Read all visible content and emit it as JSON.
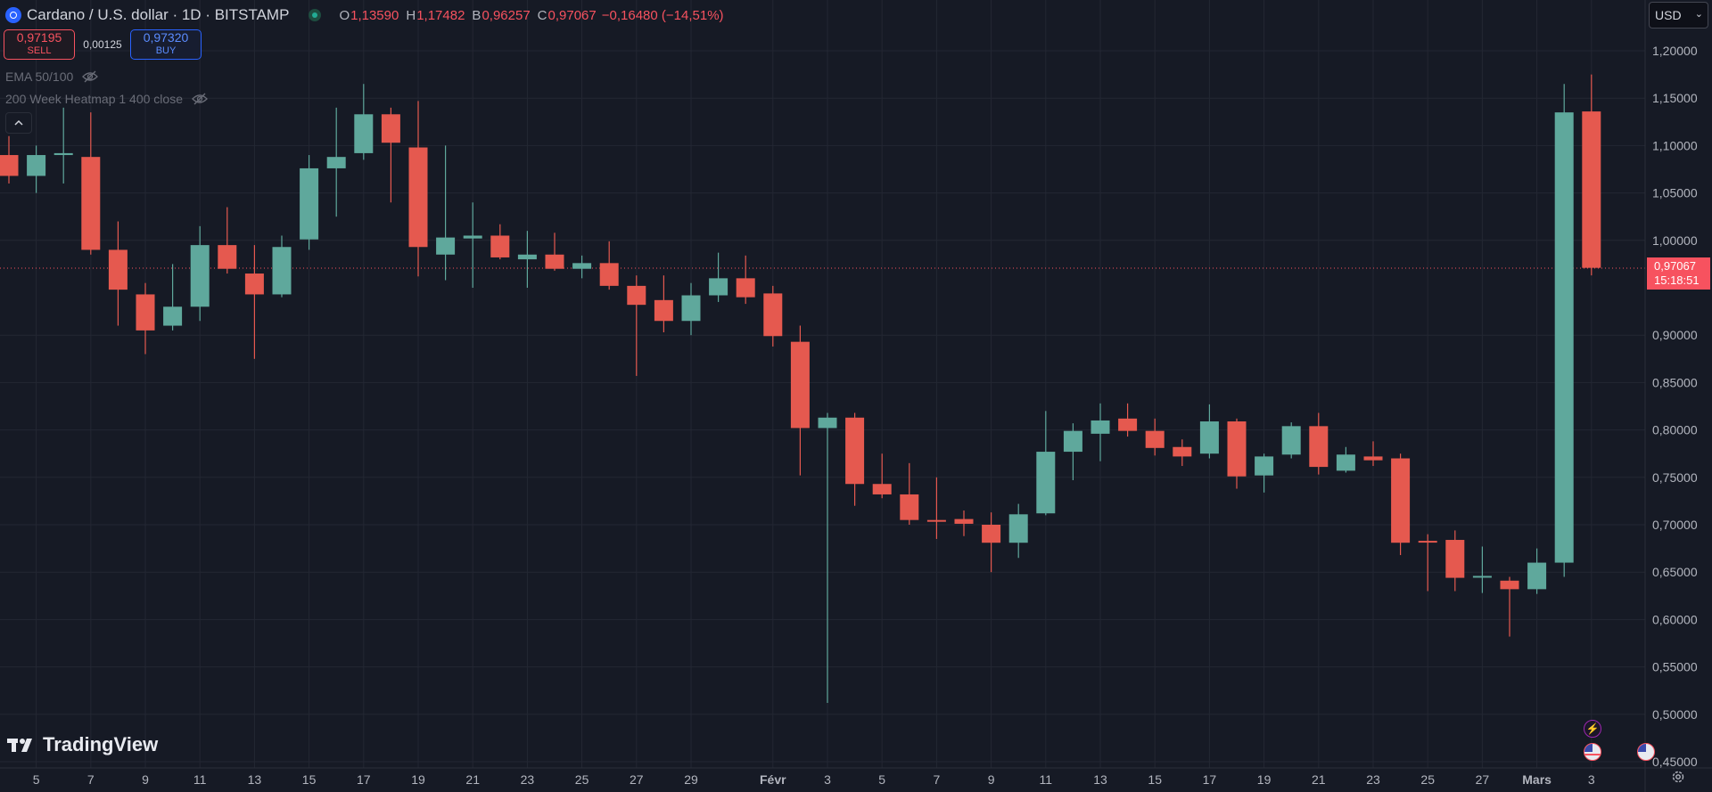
{
  "header": {
    "symbol": "Cardano / U.S. dollar · 1D · BITSTAMP",
    "o_label": "O",
    "o_value": "1,13590",
    "h_label": "H",
    "h_value": "1,17482",
    "b_label": "B",
    "b_value": "0,96257",
    "c_label": "C",
    "c_value": "0,97067",
    "change": "−0,16480 (−14,51%)"
  },
  "trade": {
    "sell_price": "0,97195",
    "sell_label": "SELL",
    "spread": "0,00125",
    "buy_price": "0,97320",
    "buy_label": "BUY"
  },
  "indicators": [
    "EMA 50/100",
    "200 Week Heatmap 1 400 close"
  ],
  "currency": "USD",
  "last_price": {
    "value": "0,97067",
    "countdown": "15:18:51"
  },
  "branding": "TradingView",
  "colors": {
    "up": "#5fa89c",
    "down": "#e5594f",
    "background": "#161a25",
    "grid": "#232733",
    "last_price": "#f7525f"
  },
  "chart_data": {
    "type": "candlestick",
    "ylim": [
      0.45,
      1.2
    ],
    "grid": true,
    "y_ticks": [
      "1,20000",
      "1,15000",
      "1,10000",
      "1,05000",
      "1,00000",
      "0,90000",
      "0,85000",
      "0,80000",
      "0,75000",
      "0,70000",
      "0,65000",
      "0,60000",
      "0,55000",
      "0,50000",
      "0,45000"
    ],
    "x_ticks": [
      "5",
      "7",
      "9",
      "11",
      "13",
      "15",
      "17",
      "19",
      "21",
      "23",
      "25",
      "27",
      "29",
      "Févr",
      "3",
      "5",
      "7",
      "9",
      "11",
      "13",
      "15",
      "17",
      "19",
      "21",
      "23",
      "25",
      "27",
      "Mars",
      "3"
    ],
    "x_dates": [
      "2025-01-05",
      "2025-01-07",
      "2025-01-09",
      "2025-01-11",
      "2025-01-13",
      "2025-01-15",
      "2025-01-17",
      "2025-01-19",
      "2025-01-21",
      "2025-01-23",
      "2025-01-25",
      "2025-01-27",
      "2025-01-29",
      "2025-02-01",
      "2025-02-03",
      "2025-02-05",
      "2025-02-07",
      "2025-02-09",
      "2025-02-11",
      "2025-02-13",
      "2025-02-15",
      "2025-02-17",
      "2025-02-19",
      "2025-02-21",
      "2025-02-23",
      "2025-02-25",
      "2025-02-27",
      "2025-03-01",
      "2025-03-03"
    ],
    "candles": [
      {
        "date": "2025-01-04",
        "o": 1.09,
        "h": 1.11,
        "l": 1.06,
        "c": 1.068
      },
      {
        "date": "2025-01-05",
        "o": 1.068,
        "h": 1.1,
        "l": 1.05,
        "c": 1.09
      },
      {
        "date": "2025-01-06",
        "o": 1.09,
        "h": 1.14,
        "l": 1.06,
        "c": 1.092
      },
      {
        "date": "2025-01-07",
        "o": 1.088,
        "h": 1.135,
        "l": 0.985,
        "c": 0.99
      },
      {
        "date": "2025-01-08",
        "o": 0.99,
        "h": 1.02,
        "l": 0.91,
        "c": 0.948
      },
      {
        "date": "2025-01-09",
        "o": 0.943,
        "h": 0.955,
        "l": 0.88,
        "c": 0.905
      },
      {
        "date": "2025-01-10",
        "o": 0.91,
        "h": 0.975,
        "l": 0.905,
        "c": 0.93
      },
      {
        "date": "2025-01-11",
        "o": 0.93,
        "h": 1.015,
        "l": 0.915,
        "c": 0.995
      },
      {
        "date": "2025-01-12",
        "o": 0.995,
        "h": 1.035,
        "l": 0.965,
        "c": 0.97
      },
      {
        "date": "2025-01-13",
        "o": 0.965,
        "h": 0.995,
        "l": 0.875,
        "c": 0.943
      },
      {
        "date": "2025-01-14",
        "o": 0.943,
        "h": 1.005,
        "l": 0.94,
        "c": 0.993
      },
      {
        "date": "2025-01-15",
        "o": 1.001,
        "h": 1.09,
        "l": 0.99,
        "c": 1.076
      },
      {
        "date": "2025-01-16",
        "o": 1.076,
        "h": 1.14,
        "l": 1.025,
        "c": 1.088
      },
      {
        "date": "2025-01-17",
        "o": 1.092,
        "h": 1.165,
        "l": 1.085,
        "c": 1.133
      },
      {
        "date": "2025-01-18",
        "o": 1.133,
        "h": 1.14,
        "l": 1.04,
        "c": 1.103
      },
      {
        "date": "2025-01-19",
        "o": 1.098,
        "h": 1.147,
        "l": 0.962,
        "c": 0.993
      },
      {
        "date": "2025-01-20",
        "o": 0.985,
        "h": 1.1,
        "l": 0.958,
        "c": 1.003
      },
      {
        "date": "2025-01-21",
        "o": 1.002,
        "h": 1.04,
        "l": 0.95,
        "c": 1.005
      },
      {
        "date": "2025-01-22",
        "o": 1.005,
        "h": 1.017,
        "l": 0.98,
        "c": 0.982
      },
      {
        "date": "2025-01-23",
        "o": 0.98,
        "h": 1.01,
        "l": 0.95,
        "c": 0.985
      },
      {
        "date": "2025-01-24",
        "o": 0.985,
        "h": 1.008,
        "l": 0.968,
        "c": 0.97
      },
      {
        "date": "2025-01-25",
        "o": 0.97,
        "h": 0.984,
        "l": 0.96,
        "c": 0.976
      },
      {
        "date": "2025-01-26",
        "o": 0.976,
        "h": 0.999,
        "l": 0.948,
        "c": 0.952
      },
      {
        "date": "2025-01-27",
        "o": 0.952,
        "h": 0.963,
        "l": 0.857,
        "c": 0.932
      },
      {
        "date": "2025-01-28",
        "o": 0.937,
        "h": 0.963,
        "l": 0.903,
        "c": 0.915
      },
      {
        "date": "2025-01-29",
        "o": 0.915,
        "h": 0.955,
        "l": 0.9,
        "c": 0.942
      },
      {
        "date": "2025-01-30",
        "o": 0.942,
        "h": 0.987,
        "l": 0.935,
        "c": 0.96
      },
      {
        "date": "2025-01-31",
        "o": 0.96,
        "h": 0.984,
        "l": 0.933,
        "c": 0.94
      },
      {
        "date": "2025-02-01",
        "o": 0.944,
        "h": 0.952,
        "l": 0.888,
        "c": 0.899
      },
      {
        "date": "2025-02-02",
        "o": 0.893,
        "h": 0.91,
        "l": 0.752,
        "c": 0.802
      },
      {
        "date": "2025-02-03",
        "o": 0.802,
        "h": 0.818,
        "l": 0.512,
        "c": 0.813
      },
      {
        "date": "2025-02-04",
        "o": 0.813,
        "h": 0.818,
        "l": 0.72,
        "c": 0.743
      },
      {
        "date": "2025-02-05",
        "o": 0.743,
        "h": 0.775,
        "l": 0.728,
        "c": 0.732
      },
      {
        "date": "2025-02-06",
        "o": 0.732,
        "h": 0.765,
        "l": 0.7,
        "c": 0.705
      },
      {
        "date": "2025-02-07",
        "o": 0.705,
        "h": 0.75,
        "l": 0.685,
        "c": 0.704
      },
      {
        "date": "2025-02-08",
        "o": 0.706,
        "h": 0.715,
        "l": 0.688,
        "c": 0.701
      },
      {
        "date": "2025-02-09",
        "o": 0.7,
        "h": 0.713,
        "l": 0.65,
        "c": 0.681
      },
      {
        "date": "2025-02-10",
        "o": 0.681,
        "h": 0.722,
        "l": 0.665,
        "c": 0.711
      },
      {
        "date": "2025-02-11",
        "o": 0.712,
        "h": 0.82,
        "l": 0.71,
        "c": 0.777
      },
      {
        "date": "2025-02-12",
        "o": 0.777,
        "h": 0.807,
        "l": 0.747,
        "c": 0.799
      },
      {
        "date": "2025-02-13",
        "o": 0.796,
        "h": 0.828,
        "l": 0.767,
        "c": 0.81
      },
      {
        "date": "2025-02-14",
        "o": 0.812,
        "h": 0.828,
        "l": 0.793,
        "c": 0.799
      },
      {
        "date": "2025-02-15",
        "o": 0.799,
        "h": 0.812,
        "l": 0.773,
        "c": 0.781
      },
      {
        "date": "2025-02-16",
        "o": 0.782,
        "h": 0.79,
        "l": 0.762,
        "c": 0.772
      },
      {
        "date": "2025-02-17",
        "o": 0.775,
        "h": 0.827,
        "l": 0.77,
        "c": 0.809
      },
      {
        "date": "2025-02-18",
        "o": 0.809,
        "h": 0.812,
        "l": 0.738,
        "c": 0.751
      },
      {
        "date": "2025-02-19",
        "o": 0.752,
        "h": 0.775,
        "l": 0.734,
        "c": 0.772
      },
      {
        "date": "2025-02-20",
        "o": 0.774,
        "h": 0.808,
        "l": 0.77,
        "c": 0.804
      },
      {
        "date": "2025-02-21",
        "o": 0.804,
        "h": 0.818,
        "l": 0.753,
        "c": 0.761
      },
      {
        "date": "2025-02-22",
        "o": 0.757,
        "h": 0.782,
        "l": 0.755,
        "c": 0.774
      },
      {
        "date": "2025-02-23",
        "o": 0.772,
        "h": 0.788,
        "l": 0.762,
        "c": 0.768
      },
      {
        "date": "2025-02-24",
        "o": 0.77,
        "h": 0.775,
        "l": 0.668,
        "c": 0.681
      },
      {
        "date": "2025-02-25",
        "o": 0.683,
        "h": 0.69,
        "l": 0.63,
        "c": 0.682
      },
      {
        "date": "2025-02-26",
        "o": 0.684,
        "h": 0.694,
        "l": 0.63,
        "c": 0.644
      },
      {
        "date": "2025-02-27",
        "o": 0.645,
        "h": 0.677,
        "l": 0.628,
        "c": 0.646
      },
      {
        "date": "2025-02-28",
        "o": 0.641,
        "h": 0.645,
        "l": 0.582,
        "c": 0.632
      },
      {
        "date": "2025-03-01",
        "o": 0.632,
        "h": 0.675,
        "l": 0.627,
        "c": 0.66
      },
      {
        "date": "2025-03-02",
        "o": 0.66,
        "h": 1.165,
        "l": 0.645,
        "c": 1.135
      },
      {
        "date": "2025-03-03",
        "o": 1.136,
        "h": 1.175,
        "l": 0.963,
        "c": 0.971
      }
    ]
  }
}
